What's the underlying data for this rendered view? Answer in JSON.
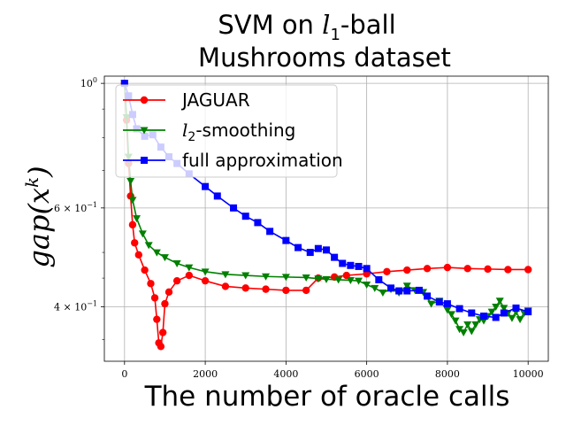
{
  "chart_data": {
    "type": "line",
    "title_line1": "SVM on l1-ball",
    "title_line2": "Mushrooms dataset",
    "xlabel": "The number of oracle calls",
    "ylabel": "gap(x^k)",
    "yscale": "log",
    "xlim": [
      -500,
      10500
    ],
    "ylim": [
      0.32,
      1.03
    ],
    "x_ticks": [
      "0",
      "2000",
      "4000",
      "6000",
      "8000",
      "10000"
    ],
    "y_ticks": [
      {
        "value": 1.0,
        "label": "10^0"
      },
      {
        "value": 0.6,
        "label": "6 × 10^-1"
      },
      {
        "value": 0.4,
        "label": "4 × 10^-1"
      }
    ],
    "grid": true,
    "legend_position": "top-left",
    "series": [
      {
        "name": "JAGUAR",
        "color": "#ff0000",
        "marker": "circle",
        "points": [
          [
            0,
            1.0
          ],
          [
            50,
            0.86
          ],
          [
            100,
            0.72
          ],
          [
            150,
            0.63
          ],
          [
            200,
            0.56
          ],
          [
            250,
            0.52
          ],
          [
            350,
            0.495
          ],
          [
            500,
            0.465
          ],
          [
            650,
            0.44
          ],
          [
            750,
            0.415
          ],
          [
            800,
            0.38
          ],
          [
            850,
            0.345
          ],
          [
            900,
            0.34
          ],
          [
            950,
            0.36
          ],
          [
            1000,
            0.405
          ],
          [
            1100,
            0.425
          ],
          [
            1300,
            0.445
          ],
          [
            1600,
            0.455
          ],
          [
            2000,
            0.445
          ],
          [
            2500,
            0.435
          ],
          [
            3000,
            0.432
          ],
          [
            3500,
            0.43
          ],
          [
            4000,
            0.428
          ],
          [
            4500,
            0.428
          ],
          [
            4800,
            0.45
          ],
          [
            5200,
            0.452
          ],
          [
            5500,
            0.455
          ],
          [
            6000,
            0.458
          ],
          [
            6500,
            0.462
          ],
          [
            7000,
            0.465
          ],
          [
            7500,
            0.468
          ],
          [
            8000,
            0.47
          ],
          [
            8500,
            0.468
          ],
          [
            9000,
            0.467
          ],
          [
            9500,
            0.466
          ],
          [
            10000,
            0.466
          ]
        ]
      },
      {
        "name": "l2-smoothing",
        "label_prefix": "l",
        "label_sub": "2",
        "label_rest": "-smoothing",
        "color": "#008000",
        "marker": "triangle-down",
        "points": [
          [
            0,
            1.0
          ],
          [
            50,
            0.87
          ],
          [
            100,
            0.74
          ],
          [
            150,
            0.67
          ],
          [
            200,
            0.62
          ],
          [
            300,
            0.575
          ],
          [
            450,
            0.54
          ],
          [
            600,
            0.515
          ],
          [
            800,
            0.5
          ],
          [
            1000,
            0.49
          ],
          [
            1300,
            0.478
          ],
          [
            1600,
            0.47
          ],
          [
            2000,
            0.462
          ],
          [
            2500,
            0.457
          ],
          [
            3000,
            0.455
          ],
          [
            3500,
            0.453
          ],
          [
            4000,
            0.452
          ],
          [
            4500,
            0.451
          ],
          [
            4800,
            0.449
          ],
          [
            5000,
            0.448
          ],
          [
            5300,
            0.447
          ],
          [
            5600,
            0.446
          ],
          [
            5800,
            0.445
          ],
          [
            6000,
            0.438
          ],
          [
            6200,
            0.432
          ],
          [
            6400,
            0.424
          ],
          [
            6600,
            0.43
          ],
          [
            6800,
            0.424
          ],
          [
            7000,
            0.436
          ],
          [
            7200,
            0.428
          ],
          [
            7400,
            0.425
          ],
          [
            7600,
            0.405
          ],
          [
            7800,
            0.41
          ],
          [
            8000,
            0.395
          ],
          [
            8100,
            0.388
          ],
          [
            8200,
            0.378
          ],
          [
            8300,
            0.365
          ],
          [
            8400,
            0.36
          ],
          [
            8500,
            0.372
          ],
          [
            8600,
            0.362
          ],
          [
            8700,
            0.372
          ],
          [
            8800,
            0.38
          ],
          [
            8900,
            0.378
          ],
          [
            9000,
            0.385
          ],
          [
            9100,
            0.392
          ],
          [
            9200,
            0.4
          ],
          [
            9300,
            0.41
          ],
          [
            9400,
            0.398
          ],
          [
            9500,
            0.39
          ],
          [
            9600,
            0.382
          ],
          [
            9700,
            0.392
          ],
          [
            9800,
            0.38
          ],
          [
            9900,
            0.39
          ],
          [
            10000,
            0.394
          ]
        ]
      },
      {
        "name": "full approximation",
        "color": "#0000ff",
        "marker": "square",
        "points": [
          [
            0,
            1.0
          ],
          [
            100,
            0.95
          ],
          [
            200,
            0.88
          ],
          [
            300,
            0.83
          ],
          [
            500,
            0.805
          ],
          [
            700,
            0.81
          ],
          [
            900,
            0.77
          ],
          [
            1100,
            0.74
          ],
          [
            1300,
            0.72
          ],
          [
            1600,
            0.69
          ],
          [
            2000,
            0.655
          ],
          [
            2300,
            0.63
          ],
          [
            2700,
            0.6
          ],
          [
            3000,
            0.58
          ],
          [
            3300,
            0.565
          ],
          [
            3600,
            0.545
          ],
          [
            4000,
            0.525
          ],
          [
            4300,
            0.51
          ],
          [
            4600,
            0.5
          ],
          [
            4800,
            0.508
          ],
          [
            5000,
            0.505
          ],
          [
            5200,
            0.49
          ],
          [
            5400,
            0.478
          ],
          [
            5600,
            0.474
          ],
          [
            5800,
            0.472
          ],
          [
            6000,
            0.468
          ],
          [
            6300,
            0.447
          ],
          [
            6600,
            0.432
          ],
          [
            6800,
            0.427
          ],
          [
            7000,
            0.427
          ],
          [
            7300,
            0.428
          ],
          [
            7500,
            0.418
          ],
          [
            7800,
            0.408
          ],
          [
            8000,
            0.405
          ],
          [
            8300,
            0.397
          ],
          [
            8600,
            0.39
          ],
          [
            8900,
            0.385
          ],
          [
            9200,
            0.383
          ],
          [
            9400,
            0.39
          ],
          [
            9700,
            0.398
          ],
          [
            10000,
            0.392
          ]
        ]
      }
    ]
  }
}
